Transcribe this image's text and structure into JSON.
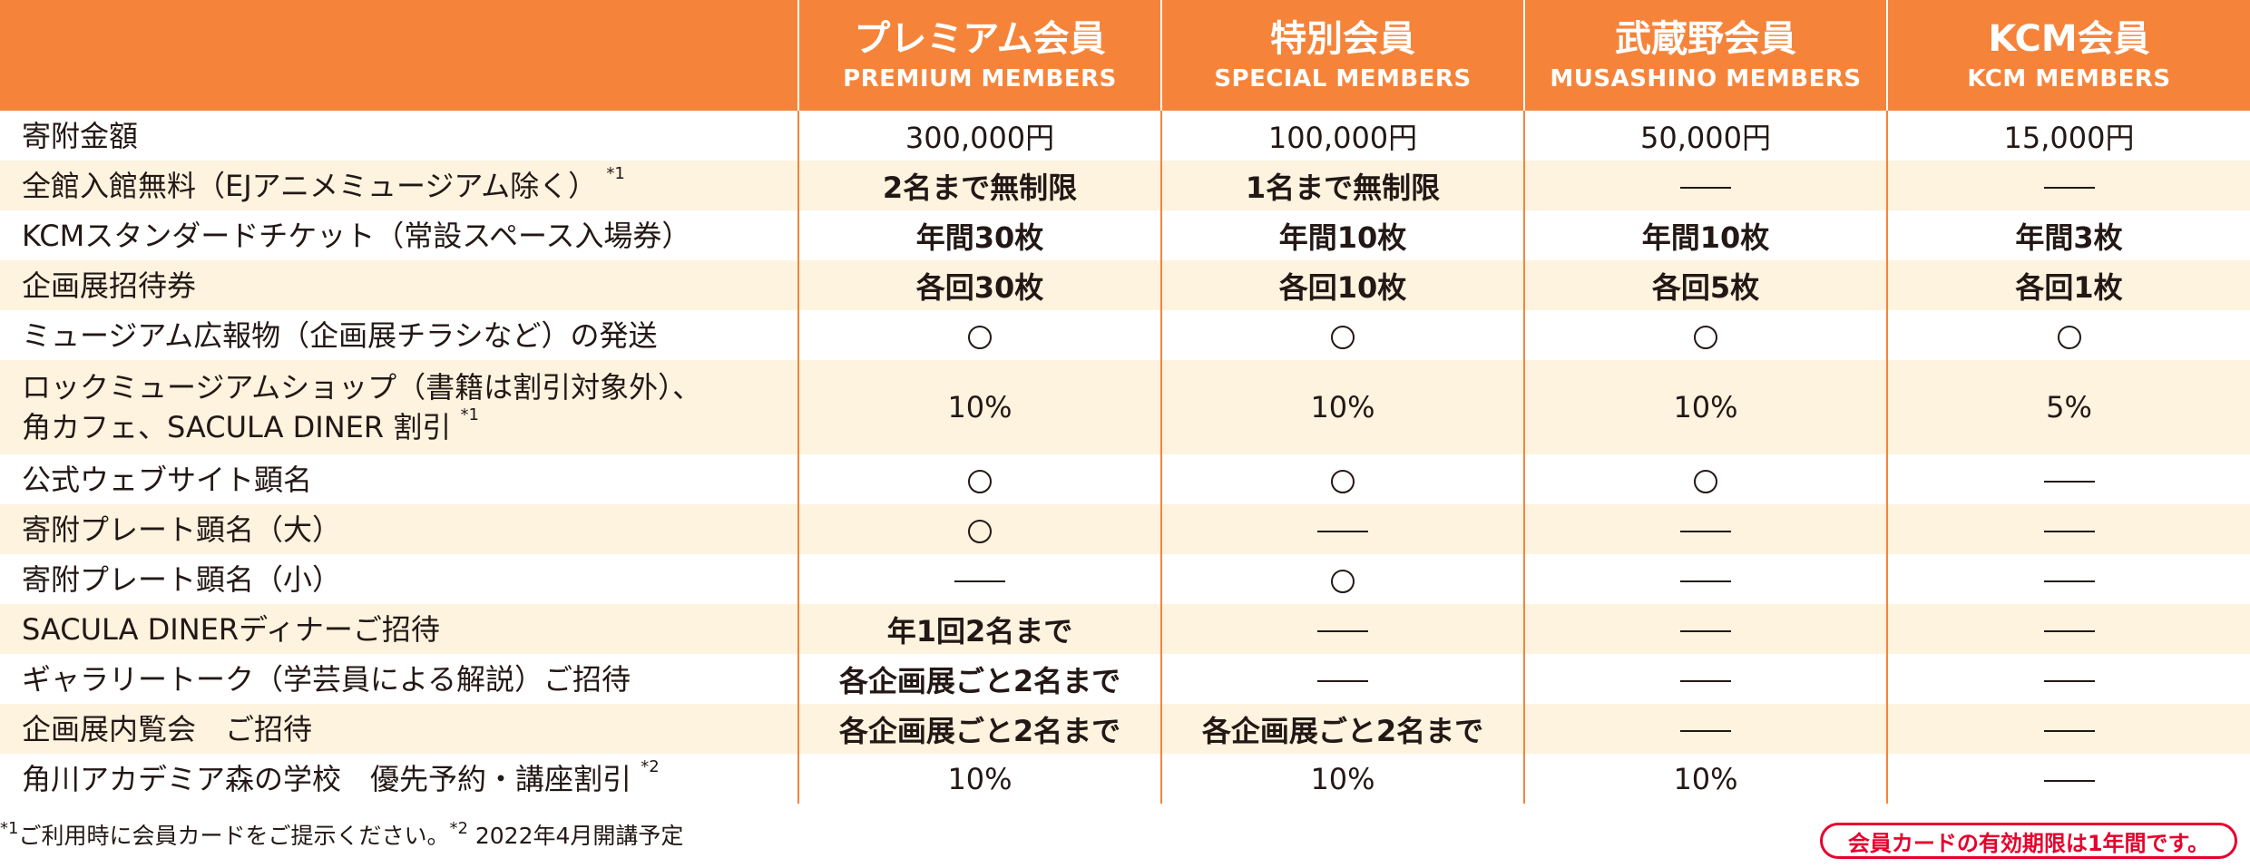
{
  "columns": [
    {
      "jp": "プレミアム会員",
      "en": "PREMIUM MEMBERS"
    },
    {
      "jp": "特別会員",
      "en": "SPECIAL MEMBERS"
    },
    {
      "jp": "武蔵野会員",
      "en": "MUSASHINO MEMBERS"
    },
    {
      "jp": "KCM会員",
      "en": "KCM MEMBERS"
    }
  ],
  "rows": [
    {
      "label": "寄附金額",
      "values": [
        "300,000円",
        "100,000円",
        "50,000円",
        "15,000円"
      ]
    },
    {
      "label": "全館入館無料（EJアニメミュージアム除く）",
      "sup": "*1",
      "values": [
        "2名まで無制限",
        "1名まで無制限",
        "—",
        "—"
      ]
    },
    {
      "label": "KCMスタンダードチケット（常設スペース入場券）",
      "values": [
        "年間30枚",
        "年間10枚",
        "年間10枚",
        "年間3枚"
      ]
    },
    {
      "label": "企画展招待券",
      "values": [
        "各回30枚",
        "各回10枚",
        "各回5枚",
        "各回1枚"
      ]
    },
    {
      "label": "ミュージアム広報物（企画展チラシなど）の発送",
      "values": [
        "○",
        "○",
        "○",
        "○"
      ]
    },
    {
      "label": "ロックミュージアムショップ（書籍は割引対象外）、",
      "label2": "角カフェ、SACULA DINER 割引",
      "sup": "*1",
      "values": [
        "10%",
        "10%",
        "10%",
        "5%"
      ]
    },
    {
      "label": "公式ウェブサイト顕名",
      "values": [
        "○",
        "○",
        "○",
        "—"
      ]
    },
    {
      "label": "寄附プレート顕名（大）",
      "values": [
        "○",
        "—",
        "—",
        "—"
      ]
    },
    {
      "label": "寄附プレート顕名（小）",
      "values": [
        "—",
        "○",
        "—",
        "—"
      ]
    },
    {
      "label": "SACULA DINERディナーご招待",
      "values": [
        "年1回2名まで",
        "—",
        "—",
        "—"
      ]
    },
    {
      "label": "ギャラリートーク（学芸員による解説）ご招待",
      "values": [
        "各企画展ごと2名まで",
        "—",
        "—",
        "—"
      ]
    },
    {
      "label": "企画展内覧会　ご招待",
      "values": [
        "各企画展ごと2名まで",
        "各企画展ごと2名まで",
        "—",
        "—"
      ]
    },
    {
      "label": "角川アカデミア森の学校　優先予約・講座割引",
      "sup": "*2",
      "values": [
        "10%",
        "10%",
        "10%",
        "—"
      ]
    }
  ],
  "footnote": {
    "sup1": "*1",
    "text1": "ご利用時に会員カードをご提示ください。",
    "sup2": "*2",
    "text2": " 2022年4月開講予定"
  },
  "validity": "会員カードの有効期限は1年間です。",
  "colors": {
    "header_bg": "#f5843a",
    "alt_row": "#fdf3df",
    "text": "#231815",
    "validity_red": "#e6002d"
  }
}
